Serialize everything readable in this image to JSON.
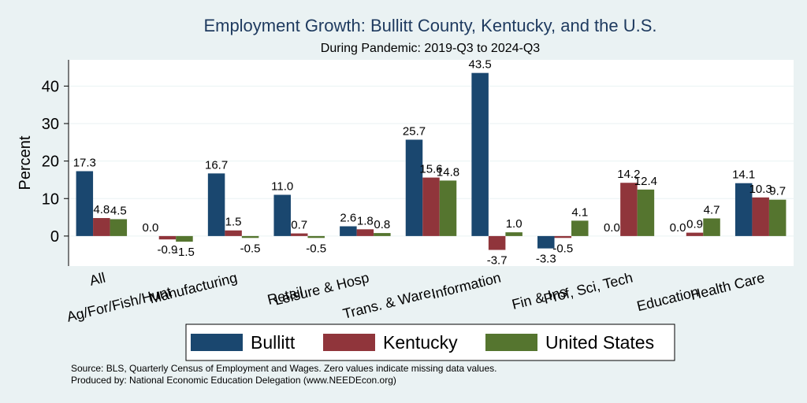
{
  "chart_data": {
    "type": "bar",
    "title": "Employment Growth: Bullitt County, Kentucky, and the U.S.",
    "subtitle": "During Pandemic: 2019-Q3 to 2024-Q3",
    "xlabel": "",
    "ylabel": "Percent",
    "ylim": [
      -8,
      47
    ],
    "yticks": [
      0,
      10,
      20,
      30,
      40
    ],
    "categories": [
      "All",
      "Ag/For/Fish/Hunt",
      "Manufacturing",
      "Retail",
      "Leisure & Hosp",
      "Trans. & Ware.",
      "Information",
      "Fin & Ins",
      "Prof, Sci, Tech",
      "Education",
      "Health Care"
    ],
    "series": [
      {
        "name": "Bullitt",
        "color": "#1a476f",
        "values": [
          17.3,
          0.0,
          16.7,
          11.0,
          2.6,
          25.7,
          43.5,
          -3.3,
          0.0,
          0.0,
          14.1
        ],
        "labels": [
          "17.3",
          "0.0",
          "16.7",
          "11.0",
          "2.6",
          "25.7",
          "43.5",
          "-3.3",
          "0.0",
          "0.0",
          "14.1"
        ]
      },
      {
        "name": "Kentucky",
        "color": "#90353b",
        "values": [
          4.8,
          -0.9,
          1.5,
          0.7,
          1.8,
          15.6,
          -3.7,
          -0.5,
          14.2,
          0.9,
          10.3
        ],
        "labels": [
          "4.8",
          "-0.9",
          "1.5",
          "0.7",
          "1.8",
          "15.6",
          "-3.7",
          "-0.5",
          "14.2",
          "0.9",
          "10.3"
        ]
      },
      {
        "name": "United States",
        "color": "#55752f",
        "values": [
          4.5,
          -1.5,
          -0.5,
          -0.5,
          0.8,
          14.8,
          1.0,
          4.1,
          12.4,
          4.7,
          9.7
        ],
        "labels": [
          "4.5",
          "-1.5",
          "-0.5",
          "-0.5",
          "0.8",
          "14.8",
          "1.0",
          "4.1",
          "12.4",
          "4.7",
          "9.7"
        ]
      }
    ],
    "grid": true,
    "legend_position": "bottom"
  },
  "footnotes": [
    "Source: BLS, Quarterly Census of Employment and Wages. Zero values indicate missing data values.",
    "Produced by: National Economic Education Delegation (www.NEEDEcon.org)"
  ]
}
